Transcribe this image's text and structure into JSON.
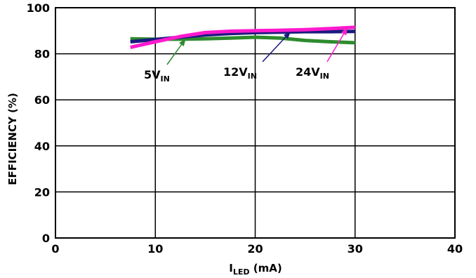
{
  "chart_data": {
    "type": "line",
    "xlabel": {
      "main": "I",
      "sub": "LED",
      "rest": " (mA)"
    },
    "ylabel": "EFFICIENCY (%)",
    "xlim": [
      0,
      40
    ],
    "ylim": [
      0,
      100
    ],
    "xticks": [
      0,
      10,
      20,
      30,
      40
    ],
    "yticks": [
      0,
      20,
      40,
      60,
      80,
      100
    ],
    "grid": true,
    "series": [
      {
        "name": "5V",
        "name_sub": "IN",
        "color": "#2e8b2e",
        "x": [
          7.5,
          10,
          12,
          15,
          17.5,
          20,
          22.5,
          25,
          27.5,
          30
        ],
        "y": [
          86.5,
          86.3,
          86.3,
          86.5,
          86.8,
          87.2,
          86.8,
          85.8,
          85.2,
          84.8
        ]
      },
      {
        "name": "12V",
        "name_sub": "IN",
        "color": "#1a1a80",
        "x": [
          7.5,
          10,
          12.5,
          15,
          17.5,
          20,
          22.5,
          25,
          27.5,
          30
        ],
        "y": [
          85.2,
          86.2,
          87.2,
          88.2,
          88.8,
          89.2,
          89.4,
          89.6,
          89.6,
          89.7
        ]
      },
      {
        "name": "24V",
        "name_sub": "IN",
        "color": "#ff1acd",
        "x": [
          7.5,
          10,
          12.5,
          15,
          17.5,
          20,
          22.5,
          25,
          27.5,
          30
        ],
        "y": [
          82.8,
          85.2,
          87.5,
          89.2,
          89.8,
          90.0,
          90.2,
          90.5,
          90.9,
          91.5
        ]
      }
    ]
  }
}
